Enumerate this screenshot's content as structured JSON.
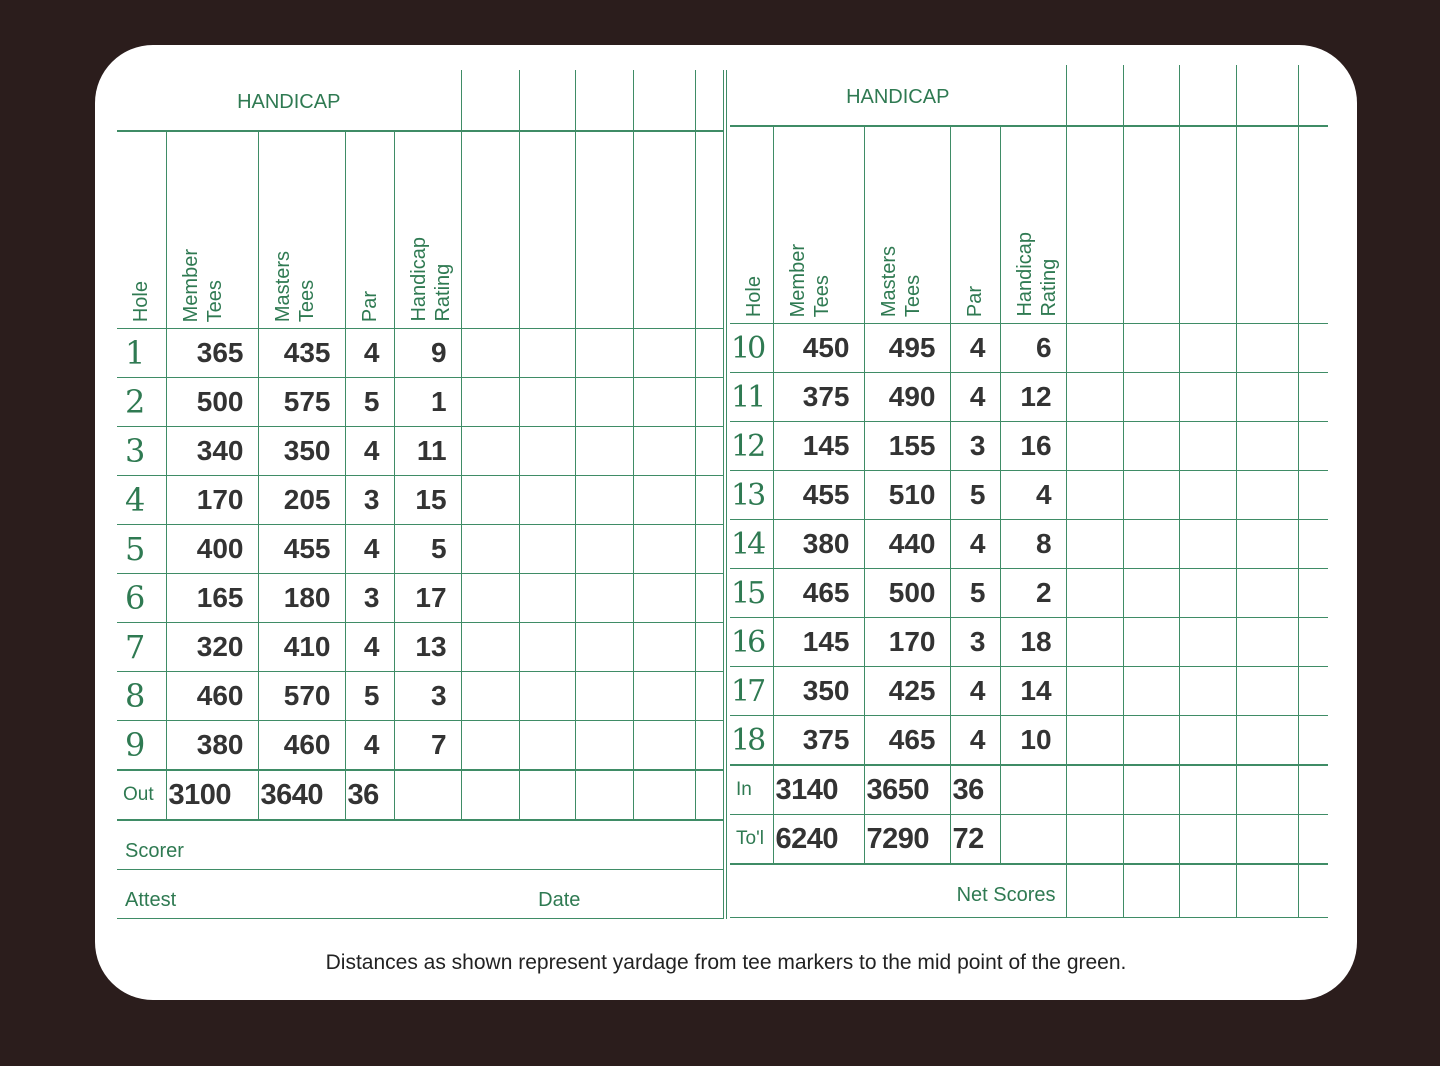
{
  "header_label": "HANDICAP",
  "columns": [
    "Hole",
    "Member\nTees",
    "Masters\nTees",
    "Par",
    "Handicap\nRating"
  ],
  "front_nine": [
    [
      "1",
      "365",
      "435",
      "4",
      "9"
    ],
    [
      "2",
      "500",
      "575",
      "5",
      "1"
    ],
    [
      "3",
      "340",
      "350",
      "4",
      "11"
    ],
    [
      "4",
      "170",
      "205",
      "3",
      "15"
    ],
    [
      "5",
      "400",
      "455",
      "4",
      "5"
    ],
    [
      "6",
      "165",
      "180",
      "3",
      "17"
    ],
    [
      "7",
      "320",
      "410",
      "4",
      "13"
    ],
    [
      "8",
      "460",
      "570",
      "5",
      "3"
    ],
    [
      "9",
      "380",
      "460",
      "4",
      "7"
    ]
  ],
  "back_nine": [
    [
      "10",
      "450",
      "495",
      "4",
      "6"
    ],
    [
      "11",
      "375",
      "490",
      "4",
      "12"
    ],
    [
      "12",
      "145",
      "155",
      "3",
      "16"
    ],
    [
      "13",
      "455",
      "510",
      "5",
      "4"
    ],
    [
      "14",
      "380",
      "440",
      "4",
      "8"
    ],
    [
      "15",
      "465",
      "500",
      "5",
      "2"
    ],
    [
      "16",
      "145",
      "170",
      "3",
      "18"
    ],
    [
      "17",
      "350",
      "425",
      "4",
      "14"
    ],
    [
      "18",
      "375",
      "465",
      "4",
      "10"
    ]
  ],
  "out": {
    "label": "Out",
    "member": "3100",
    "masters": "3640",
    "par": "36"
  },
  "in": {
    "label": "In",
    "member": "3140",
    "masters": "3650",
    "par": "36"
  },
  "total": {
    "label": "To'l",
    "member": "6240",
    "masters": "7290",
    "par": "72"
  },
  "scorer_label": "Scorer",
  "attest_label": "Attest",
  "date_label": "Date",
  "net_scores_label": "Net Scores",
  "footer_note": "Distances as shown represent yardage from tee markers to the mid point of the green.",
  "colors": {
    "ink_green": "#2f7a52",
    "line_green": "#3f8c66",
    "background": "#2b1d1c"
  }
}
